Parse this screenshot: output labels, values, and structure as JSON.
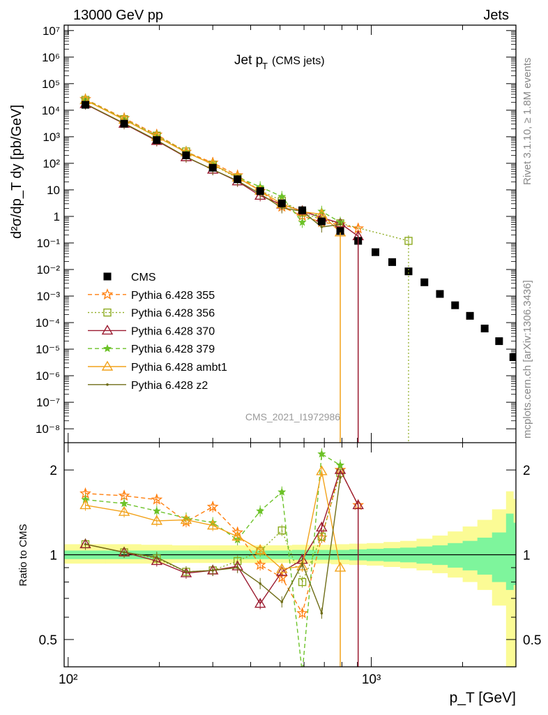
{
  "header": {
    "left": "13000 GeV pp",
    "right": "Jets"
  },
  "side_labels": {
    "top": "Rivet 3.1.10, ≥ 1.8M events",
    "bottom": "mcplots.cern.ch [arXiv:1306.3436]"
  },
  "watermark": "CMS_2021_I1972986",
  "title": {
    "main": "Jet p",
    "sub": "T",
    "suffix": "(CMS jets)"
  },
  "colors": {
    "data": "#000000",
    "p355": "#ff7f0e",
    "p356": "#8caa1e",
    "p370": "#9b1b30",
    "p379": "#6cc228",
    "ambt1": "#f2a21a",
    "z2": "#6f6d17",
    "band_inner": "#7ef59c",
    "band_outer": "#fbfb95"
  },
  "chart_data": [
    {
      "type": "scatter",
      "xlabel": "p_T [GeV]",
      "ylabel": "d²σ/dp_T dy [pb/GeV]",
      "xscale": "log",
      "yscale": "log",
      "xlim": [
        97,
        3000
      ],
      "ylim": [
        3e-09,
        16000000.0
      ],
      "legend_position": "left-middle",
      "yticks": [
        "10⁻⁸",
        "10⁻⁷",
        "10⁻⁶",
        "10⁻⁵",
        "10⁻⁴",
        "10⁻³",
        "10⁻²",
        "10⁻¹",
        "1",
        "10",
        "10²",
        "10³",
        "10⁴",
        "10⁵",
        "10⁶",
        "10⁷"
      ],
      "series": [
        {
          "name": "CMS",
          "key": "data",
          "x": [
            114,
            153,
            196,
            245,
            300,
            362,
            430,
            507,
            592,
            686,
            790,
            905,
            1032,
            1172,
            1327,
            1497,
            1684,
            1890,
            2116,
            2366,
            2640,
            2941
          ],
          "y": [
            16000,
            3100,
            750,
            200,
            68,
            25,
            9,
            3.1,
            1.7,
            0.65,
            0.28,
            0.12,
            0.045,
            0.019,
            0.0085,
            0.0033,
            0.0012,
            0.00045,
            0.00018,
            6e-05,
            2e-05,
            5e-06
          ]
        },
        {
          "name": "Pythia 6.428 355",
          "key": "p355",
          "x": [
            114,
            153,
            196,
            245,
            300,
            362,
            430,
            507,
            592,
            686,
            790,
            905
          ],
          "y": [
            26000,
            5000,
            1200,
            270,
            105,
            35,
            9,
            2.3,
            1.05,
            0.6,
            0.5,
            0.35
          ]
        },
        {
          "name": "Pythia 6.428 356",
          "key": "p356",
          "x": [
            114,
            153,
            196,
            245,
            300,
            362,
            430,
            507,
            592,
            686,
            790,
            1327
          ],
          "y": [
            24500,
            4600,
            1100,
            280,
            88,
            28,
            9.5,
            3.9,
            1.4,
            0.75,
            0.55,
            0.12
          ]
        },
        {
          "name": "Pythia 6.428 370",
          "key": "p370",
          "x": [
            114,
            153,
            196,
            245,
            300,
            362,
            430,
            507,
            592,
            686,
            790,
            905
          ],
          "y": [
            17000,
            3100,
            700,
            170,
            58,
            21,
            6,
            2.8,
            1.6,
            0.9,
            0.55,
            0.18
          ]
        },
        {
          "name": "Pythia 6.428 379",
          "key": "p379",
          "x": [
            114,
            153,
            196,
            245,
            300,
            362,
            430,
            507,
            592,
            686,
            790
          ],
          "y": [
            25000,
            4600,
            1050,
            260,
            93,
            30,
            13,
            5.6,
            0.6,
            1.55,
            0.6
          ]
        },
        {
          "name": "Pythia 6.428 ambt1",
          "key": "ambt1",
          "x": [
            114,
            153,
            196,
            245,
            300,
            362,
            430,
            507,
            592,
            686,
            790
          ],
          "y": [
            24000,
            4400,
            1000,
            260,
            92,
            29,
            9.3,
            2.9,
            1.5,
            1.2,
            0.25
          ]
        },
        {
          "name": "Pythia 6.428 z2",
          "key": "z2",
          "x": [
            114,
            153,
            196,
            245,
            300,
            362,
            430,
            507,
            592,
            686,
            790
          ],
          "y": [
            17500,
            3200,
            740,
            175,
            58,
            22,
            7.1,
            2.1,
            1.55,
            0.4,
            0.5
          ]
        }
      ]
    },
    {
      "type": "scatter",
      "xlabel": "p_T [GeV]",
      "ylabel": "Ratio to CMS",
      "xscale": "log",
      "yscale": "log",
      "xlim": [
        97,
        3000
      ],
      "ylim": [
        0.4,
        2.5
      ],
      "yticks": [
        0.5,
        1,
        2
      ],
      "xticks": [
        "10²",
        "10³"
      ],
      "bands": {
        "x_edges": [
          97,
          133,
          174,
          220,
          272,
          330,
          395,
          467,
          548,
          638,
          737,
          846,
          966,
          1098,
          1245,
          1410,
          1590,
          1787,
          2002,
          2238,
          2502,
          2783,
          2941,
          3000
        ],
        "inner_up": [
          1.035,
          1.035,
          1.035,
          1.035,
          1.035,
          1.035,
          1.035,
          1.035,
          1.04,
          1.04,
          1.04,
          1.045,
          1.05,
          1.055,
          1.06,
          1.07,
          1.08,
          1.1,
          1.12,
          1.15,
          1.2,
          1.4,
          1.3
        ],
        "inner_dn": [
          0.965,
          0.965,
          0.965,
          0.965,
          0.965,
          0.965,
          0.965,
          0.965,
          0.96,
          0.96,
          0.96,
          0.955,
          0.95,
          0.945,
          0.94,
          0.93,
          0.92,
          0.9,
          0.88,
          0.85,
          0.8,
          0.75,
          0.78
        ],
        "outer_up": [
          1.09,
          1.09,
          1.085,
          1.08,
          1.08,
          1.08,
          1.08,
          1.08,
          1.085,
          1.085,
          1.09,
          1.095,
          1.1,
          1.11,
          1.12,
          1.14,
          1.17,
          1.21,
          1.26,
          1.33,
          1.45,
          1.68,
          1.58
        ],
        "outer_dn": [
          0.93,
          0.93,
          0.93,
          0.935,
          0.935,
          0.935,
          0.935,
          0.935,
          0.93,
          0.93,
          0.925,
          0.92,
          0.915,
          0.905,
          0.895,
          0.88,
          0.86,
          0.83,
          0.8,
          0.75,
          0.66,
          0.39,
          0.39
        ]
      },
      "series": [
        {
          "name": "Pythia 6.428 355",
          "key": "p355",
          "x": [
            114,
            153,
            196,
            245,
            300,
            362,
            430,
            507,
            592,
            686,
            790,
            905
          ],
          "y": [
            1.65,
            1.62,
            1.57,
            1.31,
            1.48,
            1.2,
            0.92,
            0.83,
            0.62,
            1.15,
            2.0,
            1.5
          ]
        },
        {
          "name": "Pythia 6.428 356",
          "key": "p356",
          "x": [
            114,
            153,
            196,
            245,
            300,
            362,
            430,
            507,
            592,
            686,
            790
          ],
          "y": [
            1.09,
            1.02,
            0.97,
            0.87,
            0.88,
            0.95,
            1.03,
            1.22,
            0.8,
            1.16,
            1.95
          ]
        },
        {
          "name": "Pythia 6.428 370",
          "key": "p370",
          "x": [
            114,
            153,
            196,
            245,
            300,
            362,
            430,
            507,
            592,
            686,
            790,
            905
          ],
          "y": [
            1.09,
            1.02,
            0.95,
            0.86,
            0.88,
            0.91,
            0.67,
            0.87,
            0.96,
            1.25,
            2.0,
            1.5
          ]
        },
        {
          "name": "Pythia 6.428 379",
          "key": "p379",
          "x": [
            114,
            153,
            196,
            245,
            300,
            362,
            430,
            507,
            592,
            686,
            790
          ],
          "y": [
            1.57,
            1.52,
            1.43,
            1.35,
            1.3,
            1.13,
            1.43,
            1.67,
            0.38,
            2.28,
            2.08
          ]
        },
        {
          "name": "Pythia 6.428 ambt1",
          "key": "ambt1",
          "x": [
            114,
            153,
            196,
            245,
            300,
            362,
            430,
            507,
            592,
            686,
            790
          ],
          "y": [
            1.5,
            1.42,
            1.32,
            1.33,
            1.27,
            1.16,
            1.04,
            0.89,
            0.91,
            1.98,
            0.9
          ]
        },
        {
          "name": "Pythia 6.428 z2",
          "key": "z2",
          "x": [
            114,
            153,
            196,
            245,
            300,
            362,
            430,
            507,
            592,
            686,
            790
          ],
          "y": [
            1.09,
            1.02,
            0.98,
            0.87,
            0.88,
            0.9,
            0.79,
            0.68,
            0.93,
            0.62,
            1.88
          ]
        }
      ]
    }
  ]
}
